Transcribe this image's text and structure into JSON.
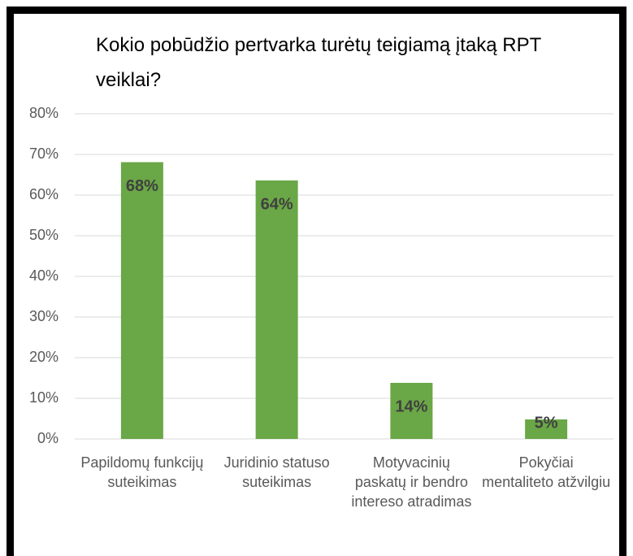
{
  "chart_data": {
    "type": "bar",
    "title": "Kokio pobūdžio pertvarka turėtų teigiamą įtaką RPT veiklai?",
    "categories": [
      "Papildomų funkcijų suteikimas",
      "Juridinio statuso suteikimas",
      "Motyvacinių paskatų ir bendro intereso atradimas",
      "Pokyčiai mentaliteto atžvilgiu"
    ],
    "values": [
      68.1,
      63.6,
      13.8,
      4.8
    ],
    "value_labels": [
      "68%",
      "64%",
      "14%",
      "5%"
    ],
    "color": "#6aa746",
    "ylim": [
      0,
      80
    ],
    "yticks": [
      {
        "value": 0,
        "label": "0%"
      },
      {
        "value": 10,
        "label": "10%"
      },
      {
        "value": 20,
        "label": "20%"
      },
      {
        "value": 30,
        "label": "30%"
      },
      {
        "value": 40,
        "label": "40%"
      },
      {
        "value": 50,
        "label": "50%"
      },
      {
        "value": 60,
        "label": "60%"
      },
      {
        "value": 70,
        "label": "70%"
      },
      {
        "value": 80,
        "label": "80%"
      }
    ],
    "grid": true
  }
}
